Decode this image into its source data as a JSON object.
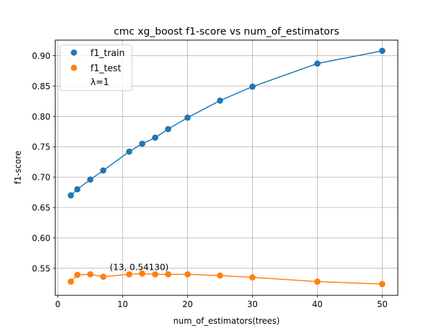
{
  "chart_data": {
    "type": "line",
    "title": "cmc xg_boost f1-score vs num_of_estimators",
    "xlabel": "num_of_estimators(trees)",
    "ylabel": "f1-score",
    "xlim": [
      -0.4,
      52.4
    ],
    "ylim": [
      0.5054,
      0.9256
    ],
    "x_ticks": [
      0,
      10,
      20,
      30,
      40,
      50
    ],
    "x_tick_labels": [
      "0",
      "10",
      "20",
      "30",
      "40",
      "50"
    ],
    "y_ticks": [
      0.55,
      0.6,
      0.65,
      0.7,
      0.75,
      0.8,
      0.85,
      0.9
    ],
    "y_tick_labels": [
      "0.55",
      "0.60",
      "0.65",
      "0.70",
      "0.75",
      "0.80",
      "0.85",
      "0.90"
    ],
    "grid": true,
    "legend_position": "top-left",
    "x": [
      2,
      3,
      5,
      7,
      11,
      13,
      15,
      17,
      20,
      25,
      30,
      40,
      50
    ],
    "series": [
      {
        "name": "f1_train",
        "color": "#1f77b4",
        "values": [
          0.67,
          0.68,
          0.696,
          0.711,
          0.742,
          0.755,
          0.765,
          0.779,
          0.798,
          0.826,
          0.849,
          0.887,
          0.908
        ]
      },
      {
        "name": "f1_test",
        "color": "#ff7f0e",
        "values": [
          0.528,
          0.539,
          0.54,
          0.536,
          0.54,
          0.5413,
          0.54,
          0.54,
          0.54,
          0.538,
          0.535,
          0.528,
          0.524
        ]
      }
    ],
    "legend_extra": "λ=1",
    "annotation": {
      "text": "(13, 0.54130)",
      "x": 13,
      "y": 0.5413
    }
  }
}
